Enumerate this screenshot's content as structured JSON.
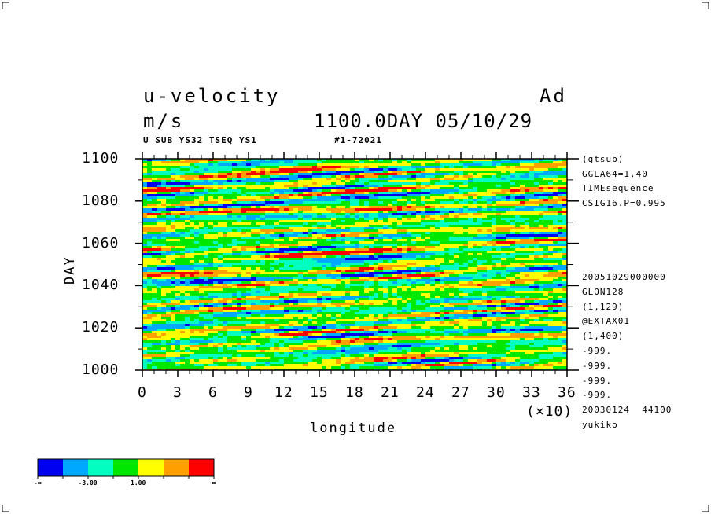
{
  "header": {
    "title_left": "u-velocity",
    "title_right": "Ad",
    "units": "m/s",
    "time_label": "1100.0DAY 05/10/29",
    "subline_left": "U SUB YS32 TSEQ YS1",
    "subline_right": "#1-72021"
  },
  "info_upper": [
    "(gtsub)",
    "GGLA64=1.40",
    "TIMEsequence",
    "CSIG16.P=0.995"
  ],
  "info_lower": [
    "20051029000000",
    "GLON128",
    "(1,129)",
    "@EXTAX01",
    "(1,400)",
    "-999.",
    "-999.",
    "-999.",
    "-999.",
    "20030124  44100",
    "yukiko"
  ],
  "chart_data": {
    "type": "heatmap",
    "title": "u-velocity",
    "units": "m/s",
    "xlabel": "longitude",
    "x_multiplier": "(×10)",
    "ylabel": "DAY",
    "xlim": [
      0,
      36
    ],
    "ylim": [
      1000,
      1100
    ],
    "x_ticks": [
      "0",
      "3",
      "6",
      "9",
      "12",
      "15",
      "18",
      "21",
      "24",
      "27",
      "30",
      "33",
      "36"
    ],
    "y_ticks": [
      "1000",
      "1020",
      "1040",
      "1060",
      "1080",
      "1100"
    ],
    "color_levels": [
      "#0000f0",
      "#00a8ff",
      "#00ffc0",
      "#00e800",
      "#ffff00",
      "#ffa000",
      "#ff0000"
    ],
    "colorbar_labels": [
      "-∞",
      "-3.00",
      "1.00",
      "∞"
    ]
  }
}
